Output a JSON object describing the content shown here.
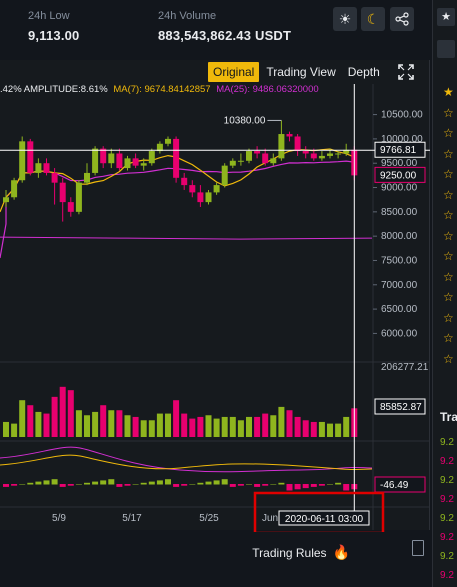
{
  "stats": {
    "low_label": "24h Low",
    "low_value": "9,113.00",
    "volume_label": "24h Volume",
    "volume_value": "883,543,862.43 USDT"
  },
  "tabs": [
    "Original",
    "Trading View",
    "Depth"
  ],
  "legend": {
    "change": ".42% AMPLITUDE:8.61%",
    "ma7": "MA(7): 9674.84142857",
    "ma25": "MA(25): 9486.06320000"
  },
  "price_axis": [
    "10500.00",
    "10000.00",
    "9500.00",
    "9000.00",
    "8500.00",
    "8000.00",
    "7500.00",
    "7000.00",
    "6500.00",
    "6000.00"
  ],
  "price_labels": {
    "current": "9766.81",
    "close": "9250.00",
    "peak": "10380.00"
  },
  "volume_axis": {
    "top": "206277.21",
    "current": "85852.87"
  },
  "macd_label": "-46.49",
  "x_labels": [
    "5/9",
    "5/17",
    "5/25",
    "Jun"
  ],
  "crosshair_time": "2020-06-11 03:00",
  "footer": {
    "trading_rules": "Trading Rules"
  },
  "colors": {
    "up": "#8fb51e",
    "down": "#e8006f",
    "accent": "#f0b90b",
    "ma7": "#f0b90b",
    "ma25": "#d12fd1",
    "highlight": "#e00000"
  },
  "right_column": {
    "header": "Tra",
    "rows": [
      "9.2",
      "9.2",
      "9.2",
      "9.2",
      "9.2",
      "9.2",
      "9.2",
      "9.2"
    ]
  },
  "chart_data": {
    "type": "candlestick",
    "open": [
      8700,
      8800,
      9150,
      9950,
      9300,
      9500,
      9300,
      9100,
      8700,
      8500,
      9100,
      9300,
      9800,
      9500,
      9700,
      9400,
      9600,
      9450,
      9500,
      9750,
      9900,
      10000,
      9200,
      9050,
      8900,
      8700,
      8900,
      9050,
      9450,
      9550,
      9550,
      9750,
      9700,
      9500,
      9600,
      10100,
      10050,
      9750,
      9700,
      9600,
      9650,
      9700,
      9700,
      9775
    ],
    "close": [
      8800,
      9150,
      9950,
      9300,
      9500,
      9300,
      9100,
      8700,
      8500,
      9100,
      9300,
      9800,
      9500,
      9700,
      9400,
      9600,
      9450,
      9500,
      9750,
      9900,
      10000,
      9200,
      9050,
      8900,
      8700,
      8900,
      9050,
      9450,
      9550,
      9550,
      9750,
      9700,
      9500,
      9600,
      10100,
      10050,
      9750,
      9700,
      9600,
      9650,
      9700,
      9700,
      9775,
      9250
    ],
    "high": [
      8950,
      9200,
      10050,
      10000,
      9600,
      9600,
      9400,
      9200,
      8800,
      9150,
      9500,
      9850,
      9850,
      9800,
      9800,
      9650,
      9700,
      9600,
      9800,
      9950,
      10050,
      10050,
      9300,
      9150,
      9050,
      8950,
      9100,
      9500,
      9600,
      9700,
      9800,
      9850,
      9800,
      9700,
      10380,
      10150,
      10100,
      9850,
      9800,
      9750,
      9800,
      9750,
      9900,
      9850
    ],
    "low": [
      8600,
      8750,
      9100,
      9250,
      9200,
      9250,
      8650,
      8300,
      8400,
      8450,
      9050,
      9250,
      9400,
      9400,
      9350,
      9350,
      9400,
      9350,
      9450,
      9700,
      9850,
      9100,
      8950,
      8800,
      8600,
      8650,
      8850,
      9000,
      9400,
      9450,
      9500,
      9600,
      9450,
      9450,
      9550,
      9950,
      9650,
      9600,
      9550,
      9550,
      9600,
      9600,
      9650,
      9150
    ],
    "volume": [
      45000,
      40000,
      110000,
      95000,
      75000,
      70000,
      120000,
      150000,
      140000,
      80000,
      65000,
      75000,
      95000,
      80000,
      80000,
      65000,
      60000,
      50000,
      50000,
      70000,
      70000,
      110000,
      70000,
      55000,
      60000,
      65000,
      55000,
      60000,
      60000,
      50000,
      60000,
      60000,
      70000,
      65000,
      90000,
      80000,
      60000,
      50000,
      45000,
      45000,
      40000,
      40000,
      60000,
      85852
    ],
    "price_range": [
      5700,
      10800
    ],
    "volume_max": 206277.21,
    "indicators": [
      "MA(7)",
      "MA(25)"
    ]
  }
}
